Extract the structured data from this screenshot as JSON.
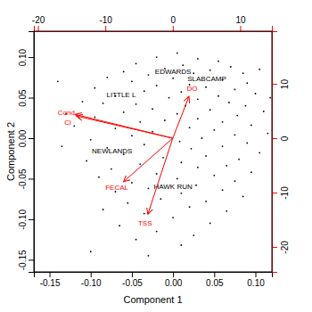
{
  "chart_data": {
    "type": "biplot",
    "xlabel": "Component 1",
    "ylabel": "Component 2",
    "xlim": [
      -0.169,
      0.12
    ],
    "ylim": [
      -0.165,
      0.132
    ],
    "xticks": [
      {
        "value": -0.15,
        "label": "-0.15"
      },
      {
        "value": -0.1,
        "label": "-0.10"
      },
      {
        "value": -0.05,
        "label": "-0.05"
      },
      {
        "value": 0,
        "label": "0.00"
      },
      {
        "value": 0.05,
        "label": "0.05"
      },
      {
        "value": 0.1,
        "label": "0.10"
      }
    ],
    "yticks": [
      {
        "value": -0.15,
        "label": "-0.15"
      },
      {
        "value": -0.1,
        "label": "-0.10"
      },
      {
        "value": -0.05,
        "label": "-0.05"
      },
      {
        "value": 0,
        "label": "0.00"
      },
      {
        "value": 0.05,
        "label": "0.05"
      },
      {
        "value": 0.1,
        "label": "0.10"
      }
    ],
    "x2lim": [
      -20.6,
      14.7
    ],
    "x2ticks": [
      -20,
      -10,
      0,
      10
    ],
    "y2lim": [
      -24.6,
      19.7
    ],
    "y2ticks": [
      -20,
      -10,
      0,
      10
    ],
    "points": {
      "color": "#000000",
      "marker": "dot",
      "x": [
        0.005,
        -0.02,
        0.03,
        0.055,
        -0.045,
        0.012,
        0.07,
        -0.01,
        0.045,
        -0.06,
        0.085,
        0.025,
        -0.03,
        -0.08,
        0,
        0.06,
        -0.05,
        0.09,
        0.02,
        -0.02,
        0.04,
        0.075,
        -0.095,
        -0.035,
        0.01,
        0.1,
        0.055,
        -0.07,
        -0.005,
        0.03,
        -0.11,
        -0.085,
        -0.045,
        0.068,
        0.088,
        0.015,
        -0.025,
        0.045,
        0.11,
        -0.06,
        0.005,
        0.078,
        -0.095,
        0.03,
        -0.01,
        0.06,
        -0.04,
        -0.12,
        0.095,
        0.02,
        -0.07,
        0.05,
        -0.025,
        0.115,
        0.075,
        -0.05,
        0.035,
        -0.1,
        0.008,
        0.09,
        -0.035,
        0.06,
        -0.08,
        0.022,
        0.105,
        -0.06,
        0.04,
        -0.012,
        0.08,
        -0.105,
        0.01,
        -0.04,
        0.065,
        0.03,
        -0.075,
        0.095,
        -0.02,
        0.05,
        -0.09,
        0.005,
        0.075,
        -0.05,
        0.028,
        -0.03,
        0.06,
        -0.07,
        0.01,
        0.085,
        -0.015,
        0.04,
        -0.055,
        0.02,
        -0.085,
        0.065,
        -0.035,
        0,
        0.045,
        -0.065,
        -0.02,
        0.025,
        -0.045,
        0.01,
        -0.1,
        -0.03,
        -0.13,
        -0.135,
        0.118,
        -0.14,
        0.105
      ],
      "y": [
        0.105,
        0.1,
        0.098,
        0.095,
        0.092,
        0.09,
        0.088,
        0.086,
        0.084,
        0.082,
        0.08,
        0.08,
        0.078,
        0.075,
        0.074,
        0.072,
        0.07,
        0.068,
        0.066,
        0.065,
        0.063,
        0.06,
        0.062,
        0.058,
        0.057,
        0.055,
        0.052,
        0.052,
        0.05,
        0.048,
        0.045,
        0.043,
        0.042,
        0.044,
        0.04,
        0.04,
        0.036,
        0.035,
        0.033,
        0.032,
        0.03,
        0.028,
        0.026,
        0.024,
        0.022,
        0.02,
        0.02,
        0.015,
        0.016,
        0.013,
        0.012,
        0.01,
        0.008,
        0.006,
        0.004,
        0.003,
        0,
        -0.002,
        -0.004,
        -0.006,
        -0.008,
        -0.01,
        -0.012,
        -0.013,
        -0.018,
        -0.02,
        -0.022,
        -0.024,
        -0.026,
        -0.028,
        -0.03,
        -0.032,
        -0.034,
        -0.036,
        -0.038,
        -0.042,
        -0.044,
        -0.046,
        -0.048,
        -0.05,
        -0.053,
        -0.055,
        -0.058,
        -0.062,
        -0.064,
        -0.066,
        -0.068,
        -0.072,
        -0.075,
        -0.078,
        -0.08,
        -0.085,
        -0.088,
        -0.09,
        -0.093,
        -0.098,
        -0.105,
        -0.108,
        -0.115,
        -0.12,
        -0.125,
        -0.132,
        -0.14,
        -0.145,
        0.03,
        -0.01,
        0.05,
        0.07,
        0.085
      ]
    },
    "site_labels": {
      "color": "#000000",
      "labels": [
        "EDWARDS",
        "SLABCAMP",
        "LITTLE L",
        "NEWLANDS",
        "HAWK RUN"
      ],
      "x": [
        0.0,
        0.041,
        -0.063,
        -0.074,
        0.0
      ],
      "y": [
        0.082,
        0.073,
        0.054,
        -0.016,
        -0.06
      ]
    },
    "loadings": {
      "color": "#ff0000",
      "axis": "y2",
      "labels": [
        "Cond",
        "Cl",
        "DO",
        "FECAL",
        "TSS"
      ],
      "x": [
        -14.5,
        -14.3,
        2.4,
        -7.3,
        -3.7
      ],
      "y": [
        4.4,
        4.1,
        7.7,
        -8.0,
        -14.0
      ]
    }
  }
}
